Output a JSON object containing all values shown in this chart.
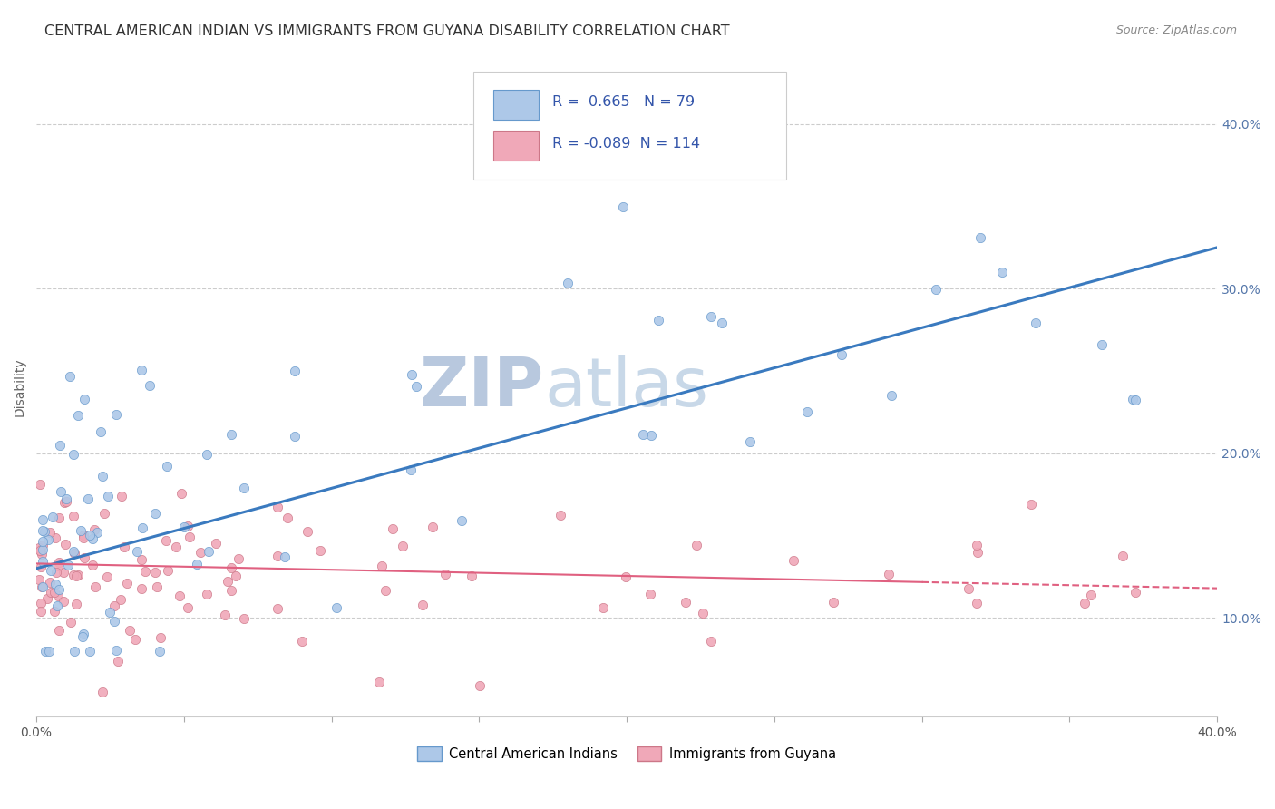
{
  "title": "CENTRAL AMERICAN INDIAN VS IMMIGRANTS FROM GUYANA DISABILITY CORRELATION CHART",
  "source": "Source: ZipAtlas.com",
  "ylabel": "Disability",
  "xlim": [
    0.0,
    0.4
  ],
  "ylim": [
    0.04,
    0.44
  ],
  "yticks": [
    0.1,
    0.2,
    0.3,
    0.4
  ],
  "xticks": [
    0.0,
    0.05,
    0.1,
    0.15,
    0.2,
    0.25,
    0.3,
    0.35,
    0.4
  ],
  "R_blue": 0.665,
  "N_blue": 79,
  "R_pink": -0.089,
  "N_pink": 114,
  "blue_scatter_color": "#adc8e8",
  "blue_edge_color": "#6699cc",
  "blue_line_color": "#3a7abf",
  "pink_scatter_color": "#f0a8b8",
  "pink_edge_color": "#cc7788",
  "pink_line_color": "#e06080",
  "legend_text_color": "#3355aa",
  "background_color": "#ffffff",
  "grid_color": "#cccccc",
  "title_color": "#333333",
  "source_color": "#888888",
  "ylabel_color": "#666666",
  "tick_color": "#5577aa",
  "blue_line_y0": 0.13,
  "blue_line_y1": 0.325,
  "pink_line_y0": 0.133,
  "pink_line_y1": 0.118
}
